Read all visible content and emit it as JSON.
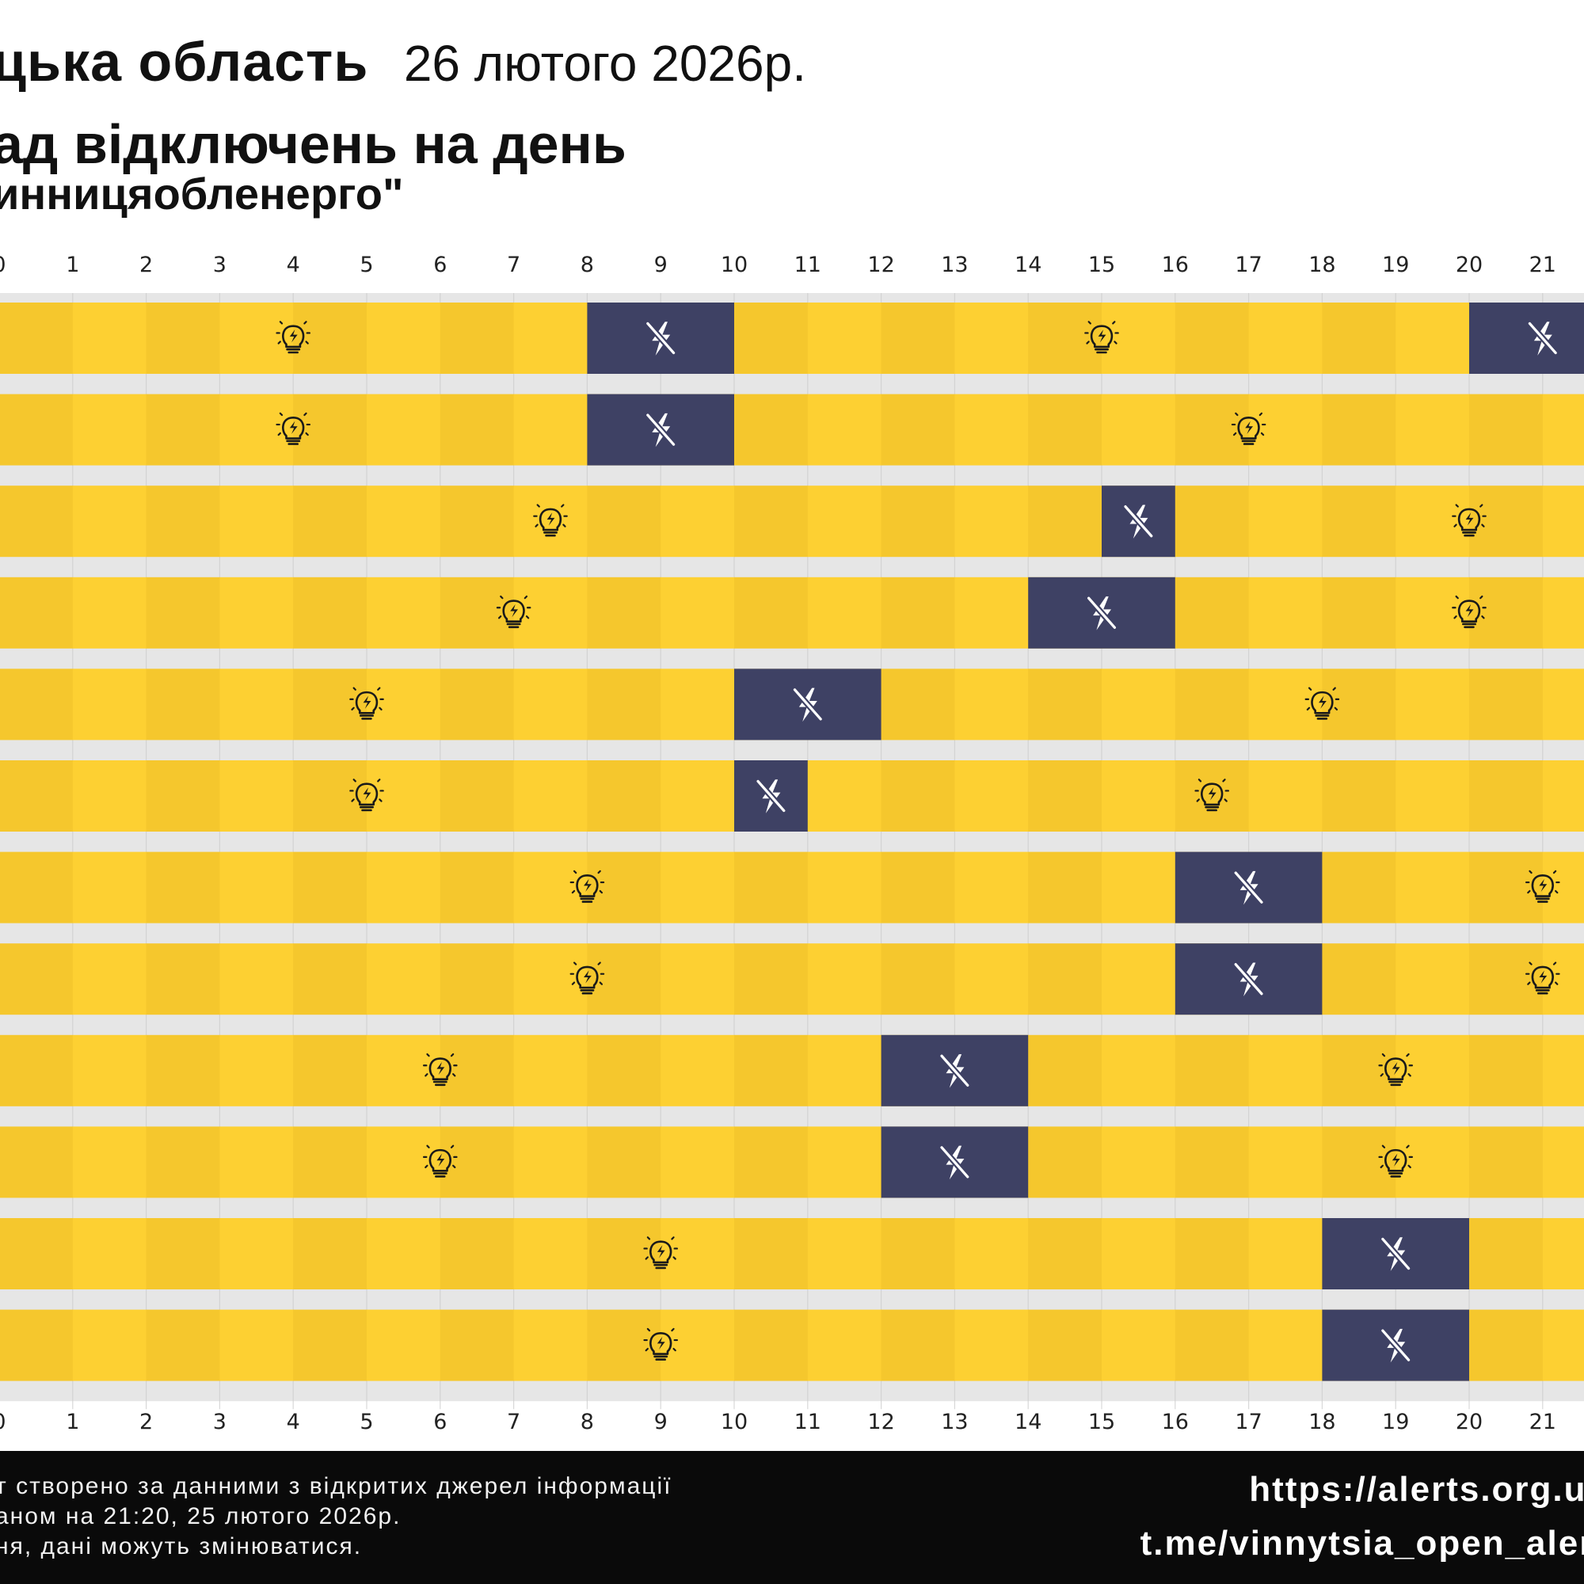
{
  "header": {
    "region": "цька область",
    "date": "26 лютого 2026р.",
    "title": "ад відключень на день",
    "source": "инницяобленерго\""
  },
  "chart_data": {
    "type": "timeline",
    "x_ticks": [
      "0",
      "1",
      "2",
      "3",
      "4",
      "5",
      "6",
      "7",
      "8",
      "9",
      "10",
      "11",
      "12",
      "13",
      "14",
      "15",
      "16",
      "17",
      "18",
      "19",
      "20",
      "21"
    ],
    "x_range": [
      0,
      24
    ],
    "rows": [
      {
        "outages": [
          [
            8,
            10
          ],
          [
            20,
            24
          ]
        ],
        "power_icons": [
          4,
          15
        ]
      },
      {
        "outages": [
          [
            8,
            10
          ]
        ],
        "power_icons": [
          4,
          17
        ]
      },
      {
        "outages": [
          [
            15,
            16
          ]
        ],
        "power_icons": [
          7.5,
          20
        ]
      },
      {
        "outages": [
          [
            14,
            16
          ]
        ],
        "power_icons": [
          7,
          20
        ]
      },
      {
        "outages": [
          [
            10,
            12
          ]
        ],
        "power_icons": [
          5,
          18
        ]
      },
      {
        "outages": [
          [
            10,
            11
          ]
        ],
        "power_icons": [
          5,
          16.5
        ]
      },
      {
        "outages": [
          [
            16,
            18
          ]
        ],
        "power_icons": [
          8,
          21
        ]
      },
      {
        "outages": [
          [
            16,
            18
          ]
        ],
        "power_icons": [
          8,
          21
        ]
      },
      {
        "outages": [
          [
            12,
            14
          ]
        ],
        "power_icons": [
          6,
          19
        ]
      },
      {
        "outages": [
          [
            12,
            14
          ]
        ],
        "power_icons": [
          6,
          19
        ]
      },
      {
        "outages": [
          [
            18,
            20
          ]
        ],
        "power_icons": [
          9
        ]
      },
      {
        "outages": [
          [
            18,
            20
          ]
        ],
        "power_icons": [
          9
        ]
      }
    ],
    "colors": {
      "power_on": "#fdd032",
      "power_on_alt": "#f5c72d",
      "outage": "#3e4164",
      "gap": "#e6e6e6",
      "grid": "#cfcfcf",
      "icon": "#1a1a1a",
      "outage_icon": "#ffffff"
    },
    "icons": {
      "power_on": "lightbulb-icon",
      "outage": "no-power-icon"
    }
  },
  "footer": {
    "note_line1": "т створено за данними з відкритих джерел інформації",
    "note_line2": "аном на 21:20, 25 лютого 2026р.",
    "note_line3": "ня, дані можуть змінюватися.",
    "link_site": "https://alerts.org.ua",
    "link_telegram": "t.me/vinnytsia_open_alert"
  }
}
